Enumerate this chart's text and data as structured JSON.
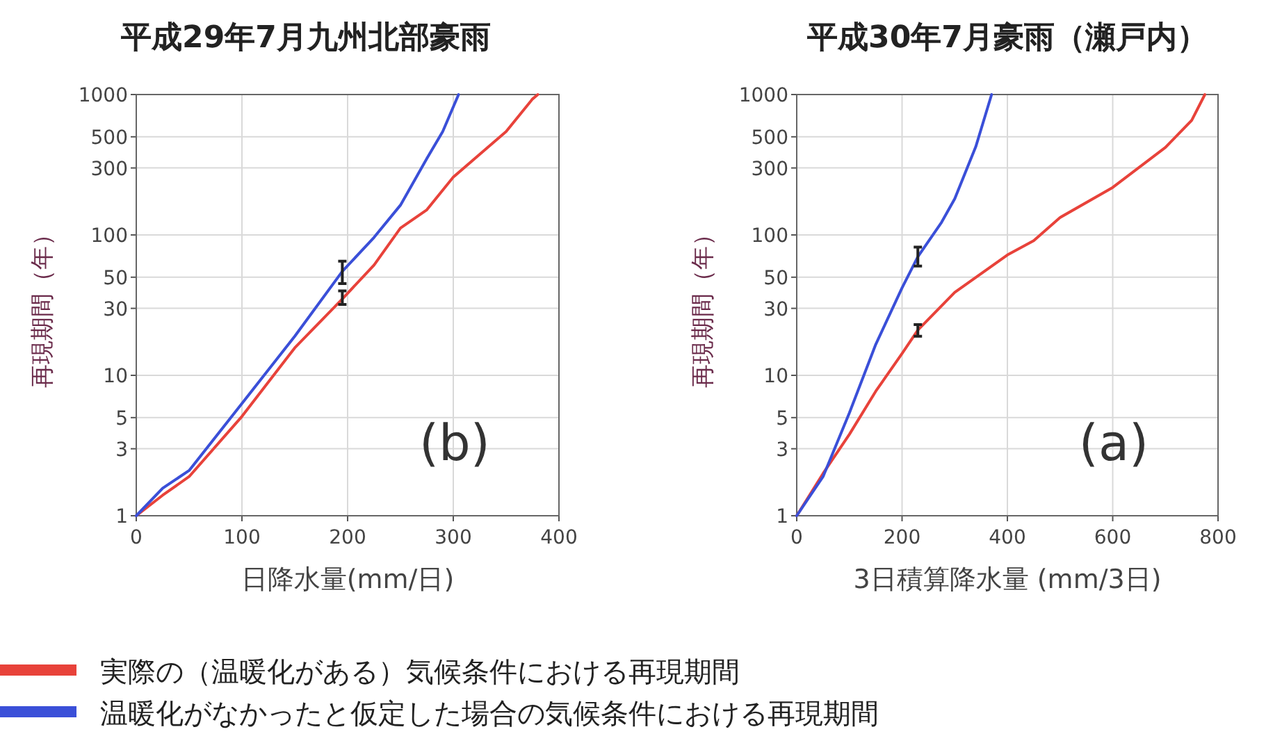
{
  "chart_data": [
    {
      "type": "line",
      "title": "平成29年7月九州北部豪雨",
      "xlabel": "日降水量(mm/日)",
      "ylabel": "再現期間（年）",
      "log": "y",
      "grid": true,
      "legend": "bottom",
      "xlim": [
        0,
        400
      ],
      "xticks": [
        0,
        100,
        200,
        300,
        400
      ],
      "ylim": [
        1,
        1000
      ],
      "yticks": [
        1,
        3,
        5,
        10,
        30,
        50,
        100,
        300,
        500,
        1000
      ],
      "annotations": [
        "(b)"
      ],
      "series": [
        {
          "name": "実際の（温暖化がある）気候条件における再現期間",
          "color": "#e8423a",
          "x": [
            0,
            25,
            50,
            100,
            150,
            195,
            225,
            250,
            275,
            300,
            325,
            350,
            375,
            380
          ],
          "values": [
            1,
            1.4,
            1.9,
            5.1,
            15.7,
            35,
            61,
            112,
            151,
            258,
            375,
            545,
            930,
            1000
          ],
          "errors": [
            null,
            null,
            null,
            null,
            null,
            [
              32,
              40
            ],
            null,
            null,
            null,
            null,
            null,
            null,
            null,
            null
          ]
        },
        {
          "name": "温暖化がなかったと仮定した場合の気候条件における再現期間",
          "color": "#3a4fd8",
          "x": [
            0,
            25,
            50,
            100,
            150,
            195,
            225,
            250,
            275,
            290,
            305
          ],
          "values": [
            1,
            1.57,
            2.1,
            6.3,
            19,
            55,
            96,
            163,
            350,
            545,
            1000
          ],
          "errors": [
            null,
            null,
            null,
            null,
            null,
            [
              45,
              65
            ],
            null,
            null,
            null,
            null,
            null
          ]
        }
      ]
    },
    {
      "type": "line",
      "title": "平成30年7月豪雨（瀬戸内）",
      "xlabel": "3日積算降水量 (mm/3日)",
      "ylabel": "再現期間（年）",
      "log": "y",
      "grid": true,
      "xlim": [
        0,
        800
      ],
      "xticks": [
        0,
        200,
        400,
        600,
        800
      ],
      "ylim": [
        1,
        1000
      ],
      "yticks": [
        1,
        3,
        5,
        10,
        30,
        50,
        100,
        300,
        500,
        1000
      ],
      "annotations": [
        "(a)"
      ],
      "series": [
        {
          "color": "#e8423a",
          "x": [
            0,
            50,
            100,
            150,
            200,
            230,
            300,
            400,
            450,
            500,
            600,
            700,
            750,
            775
          ],
          "values": [
            1,
            2,
            3.8,
            7.7,
            14.3,
            21,
            39,
            72,
            91,
            133,
            218,
            420,
            655,
            1000
          ],
          "errors": [
            null,
            null,
            null,
            null,
            null,
            [
              19,
              23
            ],
            null,
            null,
            null,
            null,
            null,
            null,
            null,
            null
          ]
        },
        {
          "color": "#3a4fd8",
          "x": [
            0,
            50,
            100,
            150,
            200,
            230,
            275,
            300,
            340,
            370
          ],
          "values": [
            1,
            1.9,
            5.4,
            16.6,
            42,
            70,
            123,
            181,
            425,
            1000
          ],
          "errors": [
            null,
            null,
            null,
            null,
            null,
            [
              60,
              82
            ],
            null,
            null,
            null,
            null
          ]
        }
      ]
    }
  ]
}
